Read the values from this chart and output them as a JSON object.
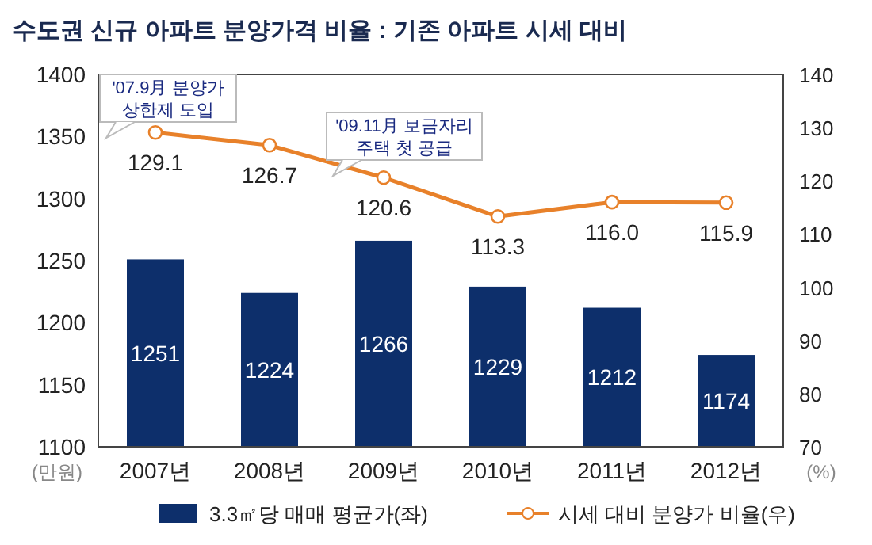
{
  "chart_data": {
    "type": "bar",
    "title": "수도권 신규 아파트 분양가격 비율 : 기존 아파트 시세 대비",
    "categories": [
      "2007년",
      "2008년",
      "2009년",
      "2010년",
      "2011년",
      "2012년"
    ],
    "series": [
      {
        "name": "3.3㎡당 매매 평균가(좌)",
        "color": "#0d2f6b",
        "values": [
          1251,
          1224,
          1266,
          1229,
          1212,
          1174
        ]
      },
      {
        "name": "시세 대비 분양가 비율(우)",
        "type": "line",
        "axis": "y2",
        "color": "#e8812a",
        "marker": "circle",
        "values": [
          129.1,
          126.7,
          120.6,
          113.3,
          116.0,
          115.9
        ],
        "value_labels": [
          "129.1",
          "126.7",
          "120.6",
          "113.3",
          "116.0",
          "115.9"
        ]
      }
    ],
    "data_labels": true,
    "ylabel": "(만원)",
    "y2label": "(%)",
    "ylim": [
      1100,
      1400
    ],
    "yticks": [
      1100,
      1150,
      1200,
      1250,
      1300,
      1350,
      1400
    ],
    "y2lim": [
      70,
      140
    ],
    "y2ticks": [
      70,
      80,
      90,
      100,
      110,
      120,
      130,
      140
    ],
    "annotations": [
      "'07.9月 분양가\n상한제 도입",
      "'09.11月 보금자리\n주택 첫 공급"
    ],
    "legend": "bottom",
    "grid": false
  }
}
